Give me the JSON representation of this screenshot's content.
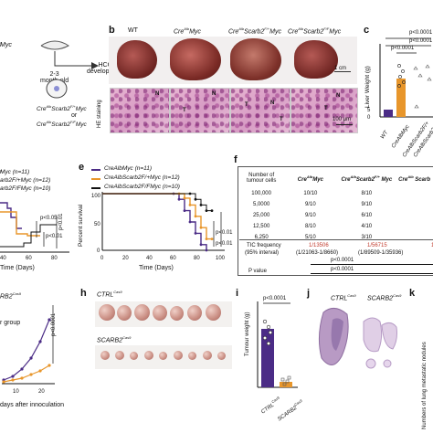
{
  "panel_letters": {
    "b": "b",
    "c": "c",
    "e": "e",
    "f": "f",
    "h": "h",
    "i": "i",
    "j": "j",
    "k": "k"
  },
  "panel_a": {
    "myc_fragment": "ͣMyc",
    "age": "2-3\nmonth-old",
    "hcc": "HCC\ndevelopment",
    "g1": "Cre^Alb Scarb2^F/+ Myc",
    "or": "or",
    "g2": "Cre^Alb Scarb2^F/F Myc"
  },
  "panel_b": {
    "headers": [
      "WT",
      "CreAlbMyc",
      "CreAlbScarb2F/+Myc",
      "CreAlbScarb2F/FMyc"
    ],
    "he_label": "HE staining",
    "scale1": "1 cm",
    "scale2": "100 μm",
    "annot": [
      "N",
      "T",
      "T",
      "N",
      "T",
      "N",
      "T",
      "N"
    ]
  },
  "panel_c": {
    "ylabel": "Liver Weight (g)",
    "yticks": [
      "0",
      "5",
      "10",
      "15"
    ],
    "p1": "p<0.0001",
    "p2": "p<0.0001",
    "p3": "p<0.0001",
    "xcats": [
      "WT",
      "CreAlbMyc",
      "CreAlbScarb2F/+",
      "CreAlbScarb2F/F"
    ],
    "chart_data": {
      "type": "bar",
      "categories": [
        "WT",
        "CreAlbMyc",
        "CreAlbScarb2F/+Myc",
        "CreAlbScarb2F/FMyc"
      ],
      "values": [
        1.1,
        6.0,
        1.0,
        0.9
      ],
      "ylim": [
        0,
        15
      ],
      "ylabel": "Liver Weight (g)"
    }
  },
  "panel_d": {
    "legend": [
      "ͣMyc (n=11)",
      "arb2F/+Myc (n=12)",
      "arb2F/FMyc (n=10)"
    ],
    "p1": "p<0.05",
    "p2": "p<0.01",
    "p3": "p<0.01",
    "xticks": [
      "40",
      "60",
      "80"
    ],
    "xlabel": "Time (Days)"
  },
  "panel_e": {
    "ylabel": "Percent survival",
    "yticks": [
      "0",
      "25",
      "50",
      "75",
      "100"
    ],
    "xticks": [
      "0",
      "20",
      "40",
      "60",
      "80",
      "100"
    ],
    "xlabel": "Time (Days)",
    "legend": [
      "CreAlbMyc (n=11)",
      "CreAlbScarb2F/+Myc (n=12)",
      "CreAlbScarb2F/FMyc (n=10)"
    ],
    "p1": "p<0.01",
    "p2": "p<0.01",
    "chart_data": {
      "type": "line",
      "xlabel": "Time (Days)",
      "ylabel": "Percent survival",
      "series": [
        {
          "name": "CreAlbMyc (n=11)",
          "x": [
            0,
            65,
            70,
            75,
            80,
            85,
            90,
            95
          ],
          "y": [
            100,
            100,
            90,
            70,
            50,
            30,
            10,
            0
          ]
        },
        {
          "name": "CreAlbScarb2F/+Myc (n=12)",
          "x": [
            0,
            70,
            75,
            80,
            85,
            90,
            95,
            100
          ],
          "y": [
            100,
            100,
            92,
            80,
            60,
            40,
            20,
            20
          ]
        },
        {
          "name": "CreAlbScarb2F/FMyc (n=10)",
          "x": [
            0,
            80,
            85,
            90,
            95,
            100
          ],
          "y": [
            100,
            100,
            90,
            80,
            70,
            70
          ]
        }
      ]
    }
  },
  "panel_f": {
    "head": [
      "Number of tumour cells",
      "CreAlbMyc",
      "CreAlbScarb2F/+ Myc",
      "CreAlb Scarb"
    ],
    "rows": [
      [
        "100,000",
        "10/10",
        "8/10",
        ""
      ],
      [
        "5,0000",
        "9/10",
        "9/10",
        ""
      ],
      [
        "25,000",
        "9/10",
        "6/10",
        ""
      ],
      [
        "12,500",
        "8/10",
        "4/10",
        ""
      ],
      [
        "6,250",
        "5/10",
        "3/10",
        ""
      ]
    ],
    "tic": [
      "TIC frequency",
      "(95% interval)",
      "1/13506",
      "(1/21063-1/8660)",
      "1/56715",
      "(1/89509-1/35936)"
    ],
    "pvalue": "P value",
    "p1": "p<0.0001",
    "p2": "p<0.0001"
  },
  "panel_g": {
    "title_frag": "RB2Cas9",
    "p": "p<0.0001",
    "group": "r group",
    "xlabel": "days after innoculation",
    "xticks": [
      "10",
      "20"
    ]
  },
  "panel_h": {
    "ctrl": "CTRLCas9",
    "scarb": "SCARB2Cas9"
  },
  "panel_i": {
    "ylabel": "Tumour weight (g)",
    "p": "p<0.0001",
    "xcats": [
      "CTRLCas9",
      "SCARB2Cas9"
    ]
  },
  "panel_j": {
    "ctrl": "CTRLCas9",
    "scarb": "SCARB2Cas9"
  },
  "panel_k": {
    "ylabel": "Numbers of lung metastatic nodules"
  },
  "colors": {
    "purple": "#4b2c86",
    "orange": "#e8962b",
    "black": "#111111",
    "red": "#c0392b"
  }
}
